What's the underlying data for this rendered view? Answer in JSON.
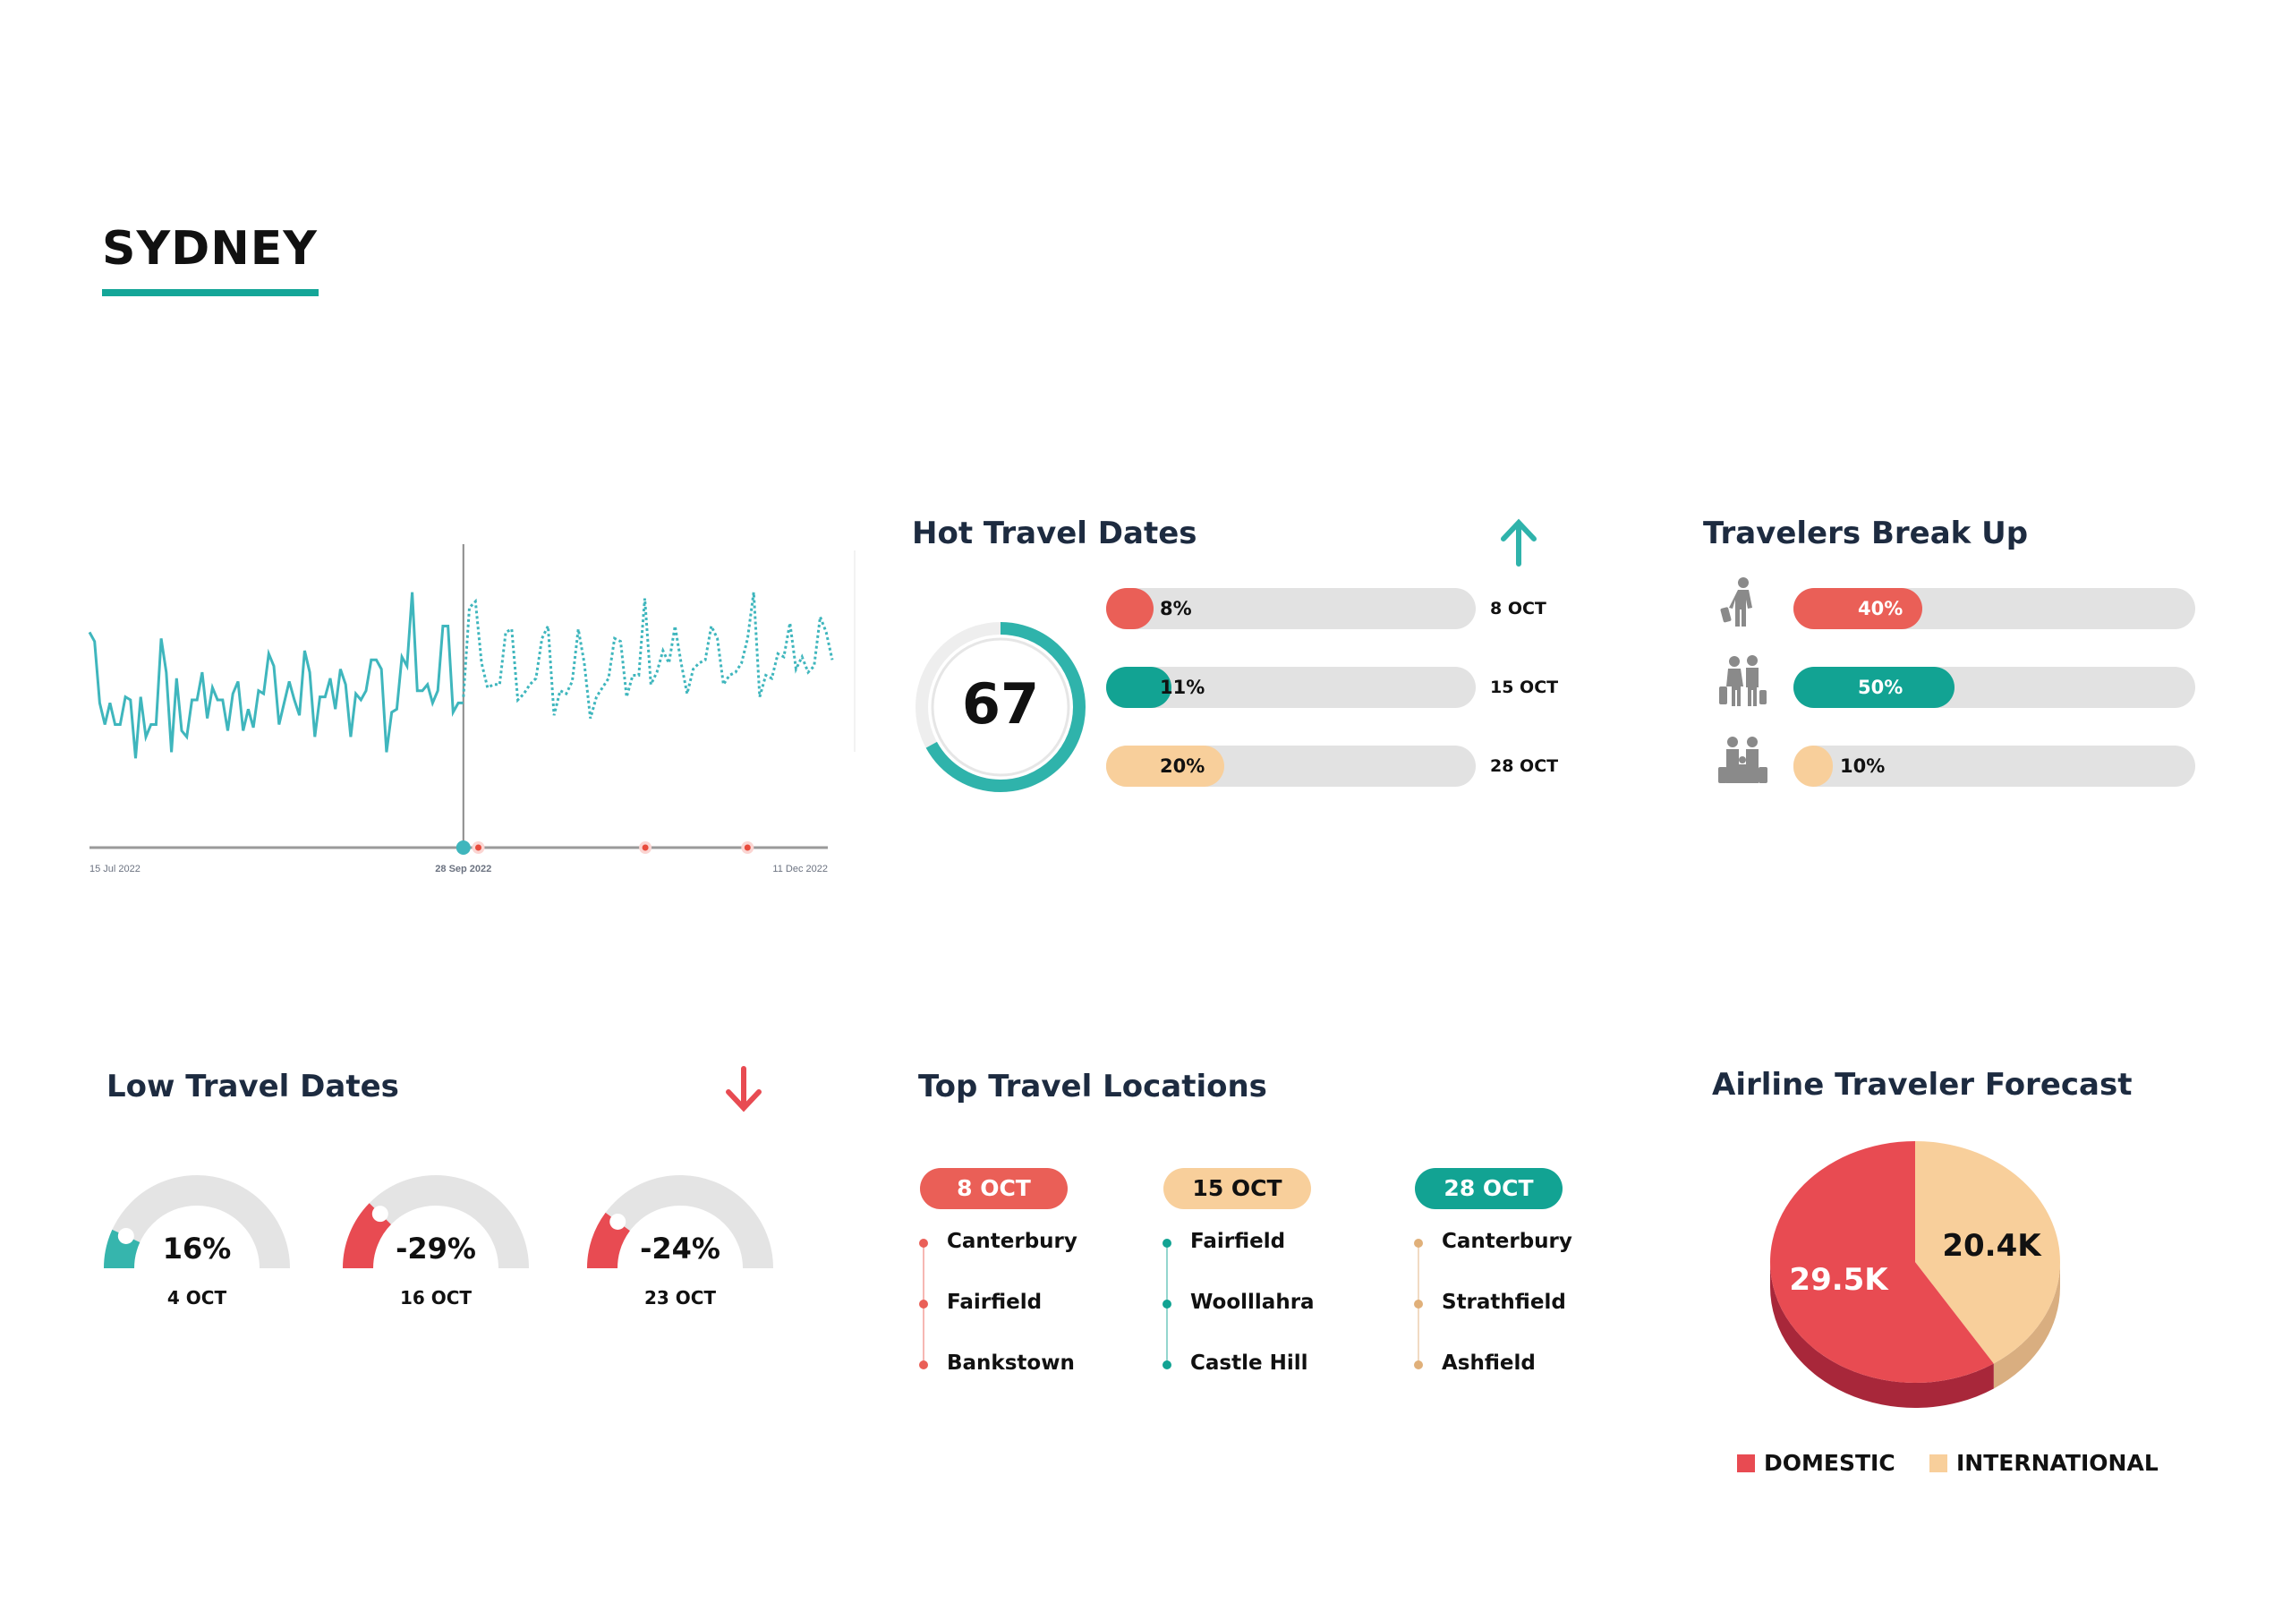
{
  "header": {
    "title": "SYDNEY",
    "accent": "#14a698"
  },
  "colors": {
    "teal": "#12a393",
    "chart_teal": "#3fb6bd",
    "red": "#ea5f57",
    "peach": "#f8cf9b",
    "track": "#e2e2e2",
    "icon_gray": "#8a8a8a"
  },
  "chart_data": {
    "type": "line",
    "x_ticks": [
      "15 Jul 2022",
      "28 Sep 2022",
      "11 Dec 2022"
    ],
    "highlight_tick": "28 Sep 2022",
    "grid": false,
    "series": [
      {
        "style": "solid",
        "values": [
          70,
          67,
          47,
          40,
          47,
          40,
          40,
          49,
          48,
          29,
          49,
          36,
          40,
          40,
          68,
          57,
          31,
          55,
          38,
          36,
          48,
          48,
          57,
          42,
          52,
          48,
          48,
          38,
          50,
          54,
          38,
          45,
          39,
          51,
          50,
          63,
          59,
          40,
          47,
          54,
          48,
          43,
          64,
          57,
          36,
          49,
          49,
          55,
          45,
          58,
          53,
          36,
          50,
          48,
          51,
          61,
          61,
          58,
          31,
          44,
          45,
          62,
          59,
          83,
          51,
          51,
          53,
          47,
          51,
          72,
          72,
          44,
          47,
          47
        ]
      },
      {
        "style": "dotted",
        "values": [
          49,
          78,
          80,
          60,
          52,
          53,
          53,
          70,
          71,
          48,
          50,
          53,
          55,
          68,
          72,
          43,
          51,
          50,
          54,
          71,
          60,
          42,
          49,
          52,
          55,
          68,
          67,
          49,
          56,
          56,
          81,
          53,
          57,
          64,
          60,
          72,
          60,
          50,
          58,
          60,
          61,
          72,
          68,
          53,
          56,
          57,
          60,
          68,
          83,
          49,
          56,
          55,
          63,
          62,
          73,
          58,
          62,
          57,
          59,
          75,
          70,
          61
        ]
      }
    ],
    "markers": [
      "1 Oct 2022",
      "3 Nov 2022",
      "24 Nov 2022"
    ]
  },
  "hot": {
    "title": "Hot Travel Dates",
    "trend_icon": "arrow-up-icon",
    "score": "67",
    "score_fraction": 0.67,
    "rows": [
      {
        "label": "8%",
        "value": 8,
        "date": "8 OCT",
        "color": "#ea5f57"
      },
      {
        "label": "11%",
        "value": 11,
        "date": "15 OCT",
        "color": "#12a393"
      },
      {
        "label": "20%",
        "value": 20,
        "date": "28 OCT",
        "color": "#f8cf9b"
      }
    ]
  },
  "travelers": {
    "title": "Travelers Break Up",
    "rows": [
      {
        "icon": "solo-traveler-icon",
        "label": "40%",
        "value": 40,
        "color": "#ea5f57"
      },
      {
        "icon": "couple-traveler-icon",
        "label": "50%",
        "value": 50,
        "color": "#12a393"
      },
      {
        "icon": "family-traveler-icon",
        "label": "10%",
        "value": 10,
        "color": "#f8cf9b"
      }
    ]
  },
  "low": {
    "title": "Low Travel Dates",
    "trend_icon": "arrow-down-icon",
    "gauges": [
      {
        "label": "16%",
        "value": 16,
        "date": "4 OCT",
        "color": "#36b5ad"
      },
      {
        "label": "-29%",
        "value": -29,
        "date": "16 OCT",
        "color": "#e84b52"
      },
      {
        "label": "-24%",
        "value": -24,
        "date": "23 OCT",
        "color": "#e84b52"
      }
    ]
  },
  "locations": {
    "title": "Top Travel Locations",
    "columns": [
      {
        "date": "8 OCT",
        "color": "#ea5f57",
        "text_color": "#ffffff",
        "dot": "#ea5f57",
        "items": [
          "Canterbury",
          "Fairfield",
          "Bankstown"
        ]
      },
      {
        "date": "15 OCT",
        "color": "#f8cf9b",
        "text_color": "#111111",
        "dot": "#12a393",
        "items": [
          "Fairfield",
          "Woolllahra",
          "Castle Hill"
        ]
      },
      {
        "date": "28 OCT",
        "color": "#12a393",
        "text_color": "#ffffff",
        "dot": "#e0b07a",
        "items": [
          "Canterbury",
          "Strathfield",
          "Ashfield"
        ]
      }
    ]
  },
  "forecast": {
    "title": "Airline Traveler Forecast",
    "chart_data": {
      "type": "pie",
      "slices": [
        {
          "name": "INTERNATIONAL",
          "value": 20.4,
          "label": "20.4K",
          "color": "#f8cf9b",
          "side": "#d9ae80"
        },
        {
          "name": "DOMESTIC",
          "value": 29.5,
          "label": "29.5K",
          "color": "#e84b52",
          "side": "#a8273a"
        }
      ],
      "legend": [
        {
          "name": "DOMESTIC",
          "color": "#e84b52"
        },
        {
          "name": "INTERNATIONAL",
          "color": "#f8cf9b"
        }
      ],
      "legend_position": "bottom"
    }
  }
}
